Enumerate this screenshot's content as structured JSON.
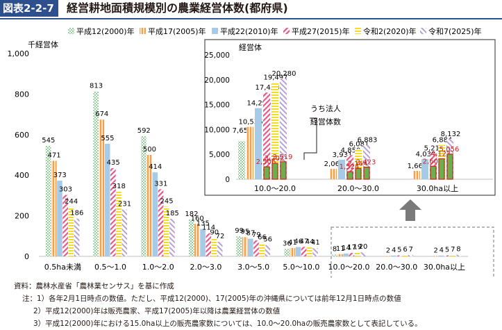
{
  "header": {
    "figure_number": "図表2-2-7",
    "title": "経営耕地面積規模別の農業経営体数(都府県)"
  },
  "legend": [
    "平成12(2000)年",
    "平成17(2005)年",
    "平成22(2010)年",
    "平成27(2015)年",
    "令和2(2020)年",
    "令和7(2025)年"
  ],
  "colors": {
    "title_bar": "#2d4f8e",
    "s2000": "#4dab5c",
    "s2005": "#f2a04a",
    "s2010": "#a6cbe9",
    "s2015": "#e8588a",
    "s2020": "#f2de1c",
    "s2025": "#b7a1d6",
    "corporate_fill": "#6cb04e",
    "corporate_stroke": "#d0211c",
    "corporate_label": "#d0211c",
    "arrow": "#7a7a7a"
  },
  "chart_data": [
    {
      "type": "bar",
      "ylabel": "千経営体",
      "ylim": [
        0,
        1000
      ],
      "yticks": [
        "0",
        "200",
        "400",
        "600",
        "800",
        "1,000"
      ],
      "categories": [
        "0.5ha未満",
        "0.5～1.0",
        "1.0～2.0",
        "2.0～3.0",
        "3.0～5.0",
        "5.0～10.0",
        "10.0～20.0",
        "20.0～30.0",
        "30.0ha以上"
      ],
      "series": [
        {
          "name": "平成12(2000)年",
          "values": [
            545,
            813,
            592,
            182,
            99,
            36,
            8,
            null,
            null
          ],
          "labels": [
            "545",
            "813",
            "592",
            "182",
            "99",
            "36",
            "8",
            "",
            ""
          ]
        },
        {
          "name": "平成17(2005)年",
          "values": [
            471,
            674,
            500,
            160,
            95,
            41,
            11,
            2,
            2
          ],
          "labels": [
            "471",
            "674",
            "500",
            "160",
            "95",
            "41",
            "11",
            "2",
            "2"
          ]
        },
        {
          "name": "平成22(2010)年",
          "values": [
            373,
            555,
            414,
            135,
            87,
            46,
            14,
            4,
            4
          ],
          "labels": [
            "373",
            "555",
            "414",
            "135",
            "87",
            "46",
            "14",
            "4",
            "4"
          ]
        },
        {
          "name": "平成27(2015)年",
          "values": [
            303,
            435,
            331,
            114,
            79,
            47,
            17,
            5,
            5
          ],
          "labels": [
            "303",
            "435",
            "331",
            "114",
            "79",
            "47",
            "17",
            "5",
            "5"
          ]
        },
        {
          "name": "令和2(2020)年",
          "values": [
            244,
            318,
            245,
            90,
            66,
            44,
            19,
            6,
            7
          ],
          "labels": [
            "244",
            "318",
            "245",
            "90",
            "66",
            "44",
            "19",
            "6",
            "7"
          ]
        },
        {
          "name": "令和7(2025)年",
          "values": [
            186,
            231,
            185,
            72,
            56,
            41,
            20,
            7,
            8
          ],
          "labels": [
            "186",
            "231",
            "185",
            "72",
            "56",
            "41",
            "20",
            "7",
            "8"
          ]
        }
      ]
    },
    {
      "type": "bar",
      "ylabel": "経営体",
      "ylim": [
        0,
        25000
      ],
      "yticks": [
        "0",
        "5,000",
        "10,000",
        "15,000",
        "20,000",
        "25,000"
      ],
      "categories": [
        "10.0～20.0",
        "20.0～30.0",
        "30.0ha以上"
      ],
      "annotation": [
        "うち法人",
        "経営体数"
      ],
      "series": [
        {
          "name": "平成12(2000)年",
          "values": [
            7655,
            null,
            null
          ],
          "labels": [
            "7,655",
            "",
            ""
          ]
        },
        {
          "name": "平成17(2005)年",
          "values": [
            10536,
            2069,
            1668
          ],
          "labels": [
            "10,536",
            "2,069",
            "1,668"
          ]
        },
        {
          "name": "平成22(2010)年",
          "values": [
            14295,
            3931,
            4039
          ],
          "labels": [
            "14,295",
            "3,931",
            "4,039"
          ]
        },
        {
          "name": "平成27(2015)年",
          "values": [
            17433,
            4850,
            5216
          ],
          "labels": [
            "17,433",
            "4,850",
            "5,216"
          ]
        },
        {
          "name": "令和2(2020)年",
          "values": [
            19497,
            6081,
            6884
          ],
          "labels": [
            "19,497",
            "6,081",
            "6,884"
          ]
        },
        {
          "name": "令和7(2025)年",
          "values": [
            20280,
            6883,
            8132
          ],
          "labels": [
            "20,280",
            "6,883",
            "8,132"
          ]
        }
      ],
      "corporate": [
        {
          "values": [
            2506,
            1524,
            2608
          ],
          "labels": [
            "2,506",
            "1,524",
            "2,608"
          ]
        },
        {
          "values": [
            3202,
            2164,
            4127
          ],
          "labels": [
            "3,202",
            "2,164",
            "4,127"
          ]
        },
        {
          "values": [
            3519,
            2423,
            5056
          ],
          "labels": [
            "3,519",
            "2,423",
            "5,056"
          ]
        }
      ]
    }
  ],
  "notes": [
    "資料：農林水産省「農林業センサス」を基に作成",
    "注：1）各年2月1日時点の数値。ただし、平成12(2000)、17(2005)年の沖縄県については前年12月1日時点の数値",
    "2）平成12(2000)年は販売農家、平成17(2005)年以降は農業経営体の数値",
    "3）平成12(2000)年における15.0ha以上の販売農家数については、10.0～20.0haの販売農家数として表記している。"
  ]
}
